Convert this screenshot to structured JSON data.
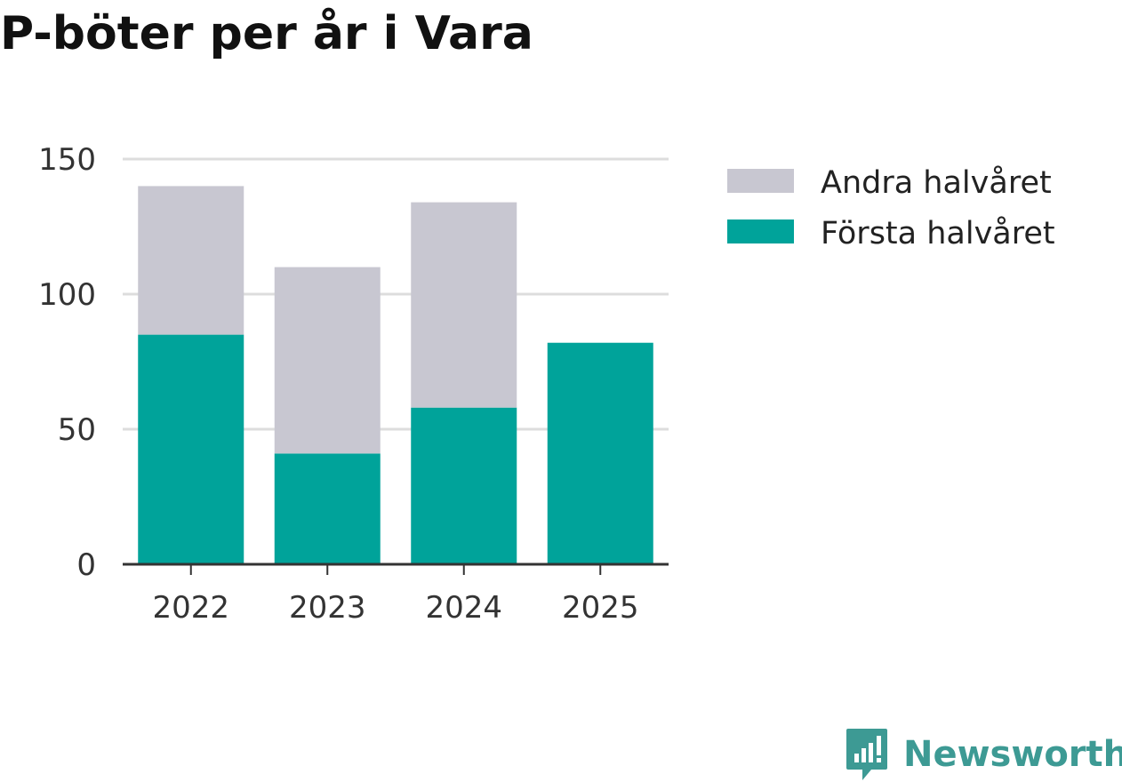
{
  "chart_data": {
    "type": "bar",
    "stacked": true,
    "title": "P-böter per år i Vara",
    "categories": [
      "2022",
      "2023",
      "2024",
      "2025"
    ],
    "series": [
      {
        "name": "Första halvåret",
        "color": "#00a39a",
        "values": [
          85,
          41,
          58,
          82
        ]
      },
      {
        "name": "Andra halvåret",
        "color": "#c8c7d1",
        "values": [
          55,
          69,
          76,
          0
        ]
      }
    ],
    "legend_order": [
      "Andra halvåret",
      "Första halvåret"
    ],
    "ylim": [
      0,
      150
    ],
    "yticks": [
      0,
      50,
      100,
      150
    ],
    "xlabel": "",
    "ylabel": "",
    "grid": true,
    "legend_position": "right"
  },
  "brand": {
    "name": "Newsworthy",
    "icon": "newsworthy-logo-icon",
    "color": "#3d9a94"
  }
}
